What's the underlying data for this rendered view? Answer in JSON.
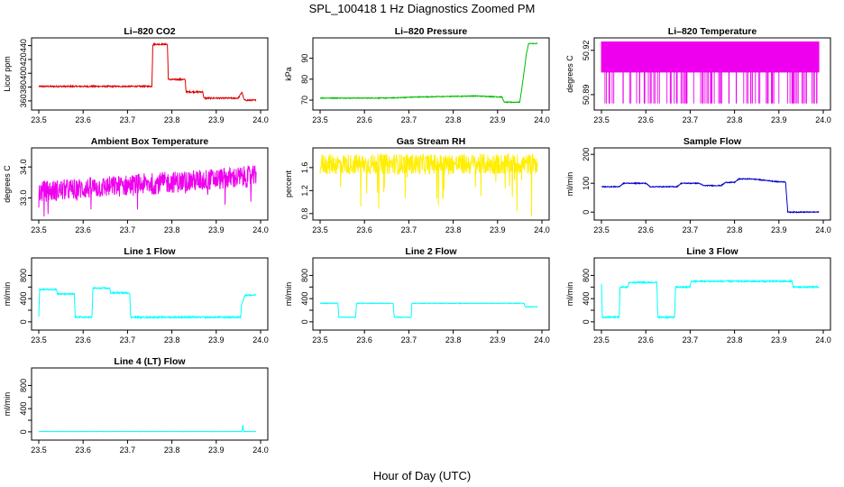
{
  "figure": {
    "title": "SPL_100418  1 Hz Diagnostics Zoomed PM",
    "xlabel": "Hour of Day (UTC)"
  },
  "chart_data": [
    {
      "id": "p1",
      "type": "line",
      "title": "Li–820 CO2",
      "ylabel": "Licor ppm",
      "color": "#dd0000",
      "xlim": [
        23.5,
        24.0
      ],
      "ylim": [
        352,
        446
      ],
      "xticks": [
        "23.5",
        "23.6",
        "23.7",
        "23.8",
        "23.9",
        "24.0"
      ],
      "yticks": [
        360,
        380,
        400,
        420,
        440
      ],
      "x": [
        23.5,
        23.6,
        23.7,
        23.755,
        23.757,
        23.79,
        23.792,
        23.83,
        23.832,
        23.87,
        23.872,
        23.95,
        23.958,
        23.962,
        23.964,
        23.99
      ],
      "y": [
        381,
        381,
        381,
        381,
        442,
        442,
        391,
        391,
        373,
        373,
        364,
        364,
        373,
        363,
        361,
        361
      ],
      "noise": 1
    },
    {
      "id": "p2",
      "type": "line",
      "title": "Li–820 Pressure",
      "ylabel": "kPa",
      "color": "#00bb00",
      "xlim": [
        23.5,
        24.0
      ],
      "ylim": [
        67,
        98
      ],
      "xticks": [
        "23.5",
        "23.6",
        "23.7",
        "23.8",
        "23.9",
        "24.0"
      ],
      "yticks": [
        70,
        80,
        90
      ],
      "x": [
        23.5,
        23.65,
        23.72,
        23.85,
        23.91,
        23.915,
        23.95,
        23.955,
        23.965,
        23.97,
        23.99
      ],
      "y": [
        71,
        71,
        71.5,
        72,
        71.5,
        69,
        69,
        76,
        92,
        97,
        97
      ],
      "noise": 0.2
    },
    {
      "id": "p3",
      "type": "band",
      "title": "Li–820 Temperature",
      "ylabel": "degrees C",
      "color": "#ee00ee",
      "xlim": [
        23.5,
        24.0
      ],
      "ylim": [
        50.882,
        50.926
      ],
      "xticks": [
        "23.5",
        "23.6",
        "23.7",
        "23.8",
        "23.9",
        "24.0"
      ],
      "yticks": [
        50.89,
        50.92
      ],
      "ytick_labels": [
        "50.89",
        "50.92"
      ],
      "x": [
        23.5,
        23.99
      ],
      "y": [
        50.925,
        50.905
      ],
      "ymin": 50.884,
      "ymax": 50.926,
      "drop_level": 50.905,
      "noise": 0
    },
    {
      "id": "p4",
      "type": "line",
      "title": "Ambient Box Temperature",
      "ylabel": "degrees C",
      "color": "#ee00ee",
      "xlim": [
        23.5,
        24.0
      ],
      "ylim": [
        32.4,
        34.5
      ],
      "xticks": [
        "23.5",
        "23.6",
        "23.7",
        "23.8",
        "23.9",
        "24.0"
      ],
      "yticks": [
        33.0,
        34.0
      ],
      "ytick_labels": [
        "33.0",
        "34.0"
      ],
      "x": [
        23.5,
        23.99
      ],
      "y": [
        33.2,
        33.7
      ],
      "noise": 0.35
    },
    {
      "id": "p5",
      "type": "line",
      "title": "Gas Stream RH",
      "ylabel": "percent",
      "color": "#ffee00",
      "xlim": [
        23.5,
        24.0
      ],
      "ylim": [
        0.75,
        1.88
      ],
      "xticks": [
        "23.5",
        "23.6",
        "23.7",
        "23.8",
        "23.9",
        "24.0"
      ],
      "yticks": [
        0.8,
        1.2,
        1.6
      ],
      "ytick_labels": [
        "0.8",
        "1.2",
        "1.6"
      ],
      "x": [
        23.5,
        23.99
      ],
      "y": [
        1.66,
        1.66
      ],
      "noise": 0.18
    },
    {
      "id": "p6",
      "type": "line",
      "title": "Sample Flow",
      "ylabel": "ml/min",
      "color": "#0000cc",
      "xlim": [
        23.5,
        24.0
      ],
      "ylim": [
        -15,
        210
      ],
      "xticks": [
        "23.5",
        "23.6",
        "23.7",
        "23.8",
        "23.9",
        "24.0"
      ],
      "yticks": [
        0,
        100,
        200
      ],
      "x": [
        23.5,
        23.54,
        23.55,
        23.6,
        23.61,
        23.67,
        23.68,
        23.72,
        23.73,
        23.77,
        23.78,
        23.8,
        23.81,
        23.84,
        23.87,
        23.9,
        23.915,
        23.92,
        23.99
      ],
      "y": [
        88,
        88,
        100,
        100,
        88,
        88,
        100,
        100,
        92,
        92,
        103,
        103,
        115,
        115,
        110,
        105,
        105,
        0,
        0
      ],
      "noise": 1.5
    },
    {
      "id": "p7",
      "type": "line",
      "title": "Line 1 Flow",
      "ylabel": "ml/min",
      "color": "#00ffff",
      "xlim": [
        23.5,
        24.0
      ],
      "ylim": [
        -80,
        1040
      ],
      "xticks": [
        "23.5",
        "23.6",
        "23.7",
        "23.8",
        "23.9",
        "24.0"
      ],
      "yticks": [
        0,
        200,
        400,
        600,
        800
      ],
      "ytick_labels": [
        "0",
        "400",
        "800"
      ],
      "x": [
        23.5,
        23.502,
        23.54,
        23.542,
        23.58,
        23.582,
        23.62,
        23.622,
        23.66,
        23.662,
        23.705,
        23.707,
        23.75,
        23.955,
        23.957,
        23.965,
        23.99
      ],
      "y": [
        100,
        560,
        560,
        480,
        480,
        80,
        80,
        580,
        580,
        500,
        500,
        80,
        80,
        80,
        300,
        460,
        460
      ],
      "noise": 12
    },
    {
      "id": "p8",
      "type": "line",
      "title": "Line 2 Flow",
      "ylabel": "ml/min",
      "color": "#00ffff",
      "xlim": [
        23.5,
        24.0
      ],
      "ylim": [
        -80,
        1040
      ],
      "xticks": [
        "23.5",
        "23.6",
        "23.7",
        "23.8",
        "23.9",
        "24.0"
      ],
      "yticks": [
        0,
        200,
        400,
        600,
        800
      ],
      "ytick_labels": [
        "0",
        "400",
        "800"
      ],
      "x": [
        23.5,
        23.54,
        23.542,
        23.58,
        23.582,
        23.665,
        23.667,
        23.705,
        23.707,
        23.96,
        23.962,
        23.99
      ],
      "y": [
        320,
        320,
        80,
        80,
        320,
        320,
        80,
        80,
        320,
        320,
        260,
        260
      ],
      "noise": 5
    },
    {
      "id": "p9",
      "type": "line",
      "title": "Line 3 Flow",
      "ylabel": "ml/min",
      "color": "#00ffff",
      "xlim": [
        23.5,
        24.0
      ],
      "ylim": [
        -80,
        1040
      ],
      "xticks": [
        "23.5",
        "23.6",
        "23.7",
        "23.8",
        "23.9",
        "24.0"
      ],
      "yticks": [
        0,
        200,
        400,
        600,
        800
      ],
      "ytick_labels": [
        "0",
        "400",
        "800"
      ],
      "x": [
        23.5,
        23.502,
        23.504,
        23.54,
        23.542,
        23.56,
        23.562,
        23.625,
        23.627,
        23.665,
        23.667,
        23.7,
        23.702,
        23.93,
        23.932,
        23.99
      ],
      "y": [
        650,
        80,
        80,
        80,
        600,
        600,
        680,
        680,
        80,
        80,
        600,
        600,
        700,
        700,
        600,
        600
      ],
      "noise": 12
    },
    {
      "id": "p10",
      "type": "line",
      "title": "Line 4 (LT) Flow",
      "ylabel": "ml/min",
      "color": "#00ffff",
      "xlim": [
        23.5,
        24.0
      ],
      "ylim": [
        -80,
        1040
      ],
      "xticks": [
        "23.5",
        "23.6",
        "23.7",
        "23.8",
        "23.9",
        "24.0"
      ],
      "yticks": [
        0,
        200,
        400,
        600,
        800
      ],
      "ytick_labels": [
        "0",
        "400",
        "800"
      ],
      "x": [
        23.5,
        23.958,
        23.96,
        23.962,
        23.99
      ],
      "y": [
        5,
        5,
        120,
        5,
        5
      ],
      "noise": 2
    }
  ]
}
